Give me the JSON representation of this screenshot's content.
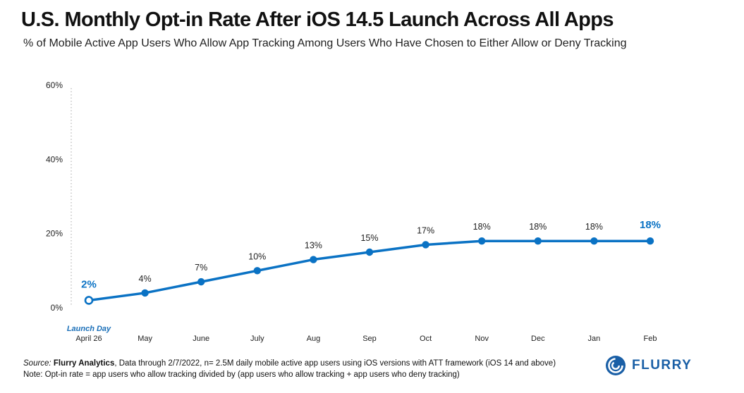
{
  "header": {
    "title": "U.S. Monthly Opt-in Rate After iOS 14.5 Launch Across All Apps",
    "subtitle": "% of Mobile Active App Users Who Allow App Tracking Among Users Who Have Chosen to Either Allow or Deny Tracking"
  },
  "chart_data": {
    "type": "line",
    "title": "U.S. Monthly Opt-in Rate After iOS 14.5 Launch Across All Apps",
    "xlabel": "",
    "ylabel": "",
    "ylim": [
      0,
      60
    ],
    "yticks": [
      0,
      20,
      40,
      60
    ],
    "ytick_labels": [
      "0%",
      "20%",
      "40%",
      "60%"
    ],
    "categories": [
      "April 26",
      "May",
      "June",
      "July",
      "Aug",
      "Sep",
      "Oct",
      "Nov",
      "Dec",
      "Jan",
      "Feb"
    ],
    "series": [
      {
        "name": "Opt-in rate",
        "color": "#0a72c4",
        "values": [
          2,
          4,
          7,
          10,
          13,
          15,
          17,
          18,
          18,
          18,
          18
        ],
        "labels": [
          "2%",
          "4%",
          "7%",
          "10%",
          "13%",
          "15%",
          "17%",
          "18%",
          "18%",
          "18%",
          "18%"
        ]
      }
    ],
    "annotations": [
      {
        "text": "Launch Day",
        "category": "April 26"
      }
    ]
  },
  "footer": {
    "source_prefix": "Source:",
    "source_name": "Flurry Analytics",
    "source_text": ", Data through 2/7/2022, n= 2.5M daily mobile active app users using iOS versions with ATT framework (iOS 14 and above)",
    "note": "Note: Opt-in rate = app users who allow tracking divided by (app users who allow tracking + app users who deny tracking)"
  },
  "logo": {
    "text": "FLURRY",
    "color": "#1a5fa6"
  }
}
